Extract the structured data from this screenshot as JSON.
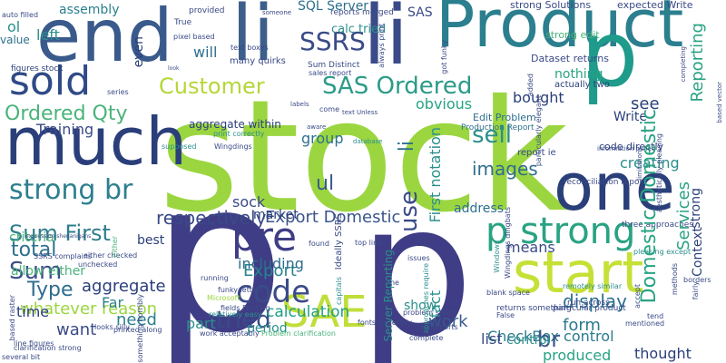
{
  "words": [
    {
      "text": "stock",
      "color": "#9bd640",
      "vertical": false
    },
    {
      "text": "p",
      "color": "#3f3d85",
      "vertical": false
    },
    {
      "text": "p",
      "color": "#3f3d85",
      "vertical": false
    },
    {
      "text": "end",
      "color": "#3a5a8c",
      "vertical": false
    },
    {
      "text": "li",
      "color": "#3d5f8b",
      "vertical": false
    },
    {
      "text": "li",
      "color": "#3a4b88",
      "vertical": false
    },
    {
      "text": "Product",
      "color": "#2b7f8e",
      "vertical": false
    },
    {
      "text": "p",
      "color": "#1e9b8a",
      "vertical": false
    },
    {
      "text": "one",
      "color": "#2a3f7a",
      "vertical": false
    },
    {
      "text": "much",
      "color": "#2a3f7a",
      "vertical": false
    },
    {
      "text": "start",
      "color": "#c6e036",
      "vertical": false
    },
    {
      "text": "sold",
      "color": "#2f4a86",
      "vertical": false
    },
    {
      "text": "pre",
      "color": "#3f3d85",
      "vertical": false
    },
    {
      "text": "p strong",
      "color": "#29a383",
      "vertical": false
    },
    {
      "text": "SAE",
      "color": "#c0de3a",
      "vertical": false
    },
    {
      "text": "code",
      "color": "#3a4b88",
      "vertical": false
    },
    {
      "text": "SSRS",
      "color": "#3a4b88",
      "vertical": false
    },
    {
      "text": "SAS Ordered",
      "color": "#2b9b88",
      "vertical": false
    },
    {
      "text": "Customer",
      "color": "#b5d738",
      "vertical": false
    },
    {
      "text": "strong br",
      "color": "#2c7f8e",
      "vertical": false
    },
    {
      "text": "Ordered Qty",
      "color": "#4ab37a",
      "vertical": false
    },
    {
      "text": "respectively",
      "color": "#3a4a87",
      "vertical": false
    },
    {
      "text": "Sum First",
      "color": "#2e7d8c",
      "vertical": false
    },
    {
      "text": "Sum",
      "color": "#3c4f88",
      "vertical": false
    },
    {
      "text": "tried",
      "color": "#3a4a87",
      "vertical": false
    },
    {
      "text": "total",
      "color": "#2d708e",
      "vertical": false
    },
    {
      "text": "Type",
      "color": "#2e6d8e",
      "vertical": false
    },
    {
      "text": "sell",
      "color": "#2b8f8c",
      "vertical": false
    },
    {
      "text": "ul",
      "color": "#37598c",
      "vertical": false
    },
    {
      "text": "images",
      "color": "#2f6e8e",
      "vertical": false
    },
    {
      "text": "Export Domestic",
      "color": "#3a548b",
      "vertical": false
    },
    {
      "text": "Export",
      "color": "#27848e",
      "vertical": false
    },
    {
      "text": "work",
      "color": "#37598c",
      "vertical": false
    },
    {
      "text": "display",
      "color": "#2d6f8e",
      "vertical": false
    },
    {
      "text": "form",
      "color": "#2b7a8e",
      "vertical": false
    },
    {
      "text": "CheckBox control",
      "color": "#2b7a8e",
      "vertical": false
    },
    {
      "text": "br",
      "color": "#3a548b",
      "vertical": false
    },
    {
      "text": "whatever reason",
      "color": "#9bd640",
      "vertical": false
    },
    {
      "text": "calculation",
      "color": "#1fa088",
      "vertical": false
    },
    {
      "text": "including",
      "color": "#2e6d8e",
      "vertical": false
    },
    {
      "text": "allow either",
      "color": "#4ab37a",
      "vertical": false
    },
    {
      "text": "criteria",
      "color": "#4ab37a",
      "vertical": false
    },
    {
      "text": "aggregate",
      "color": "#2a3f7a",
      "vertical": false
    },
    {
      "text": "Far",
      "color": "#2c7f8e",
      "vertical": false
    },
    {
      "text": "need",
      "color": "#2c7f8e",
      "vertical": false
    },
    {
      "text": "time",
      "color": "#2a3f7a",
      "vertical": false
    },
    {
      "text": "want",
      "color": "#3a4a87",
      "vertical": false
    },
    {
      "text": "part",
      "color": "#2b8f8c",
      "vertical": false
    },
    {
      "text": "period",
      "color": "#2b8f8c",
      "vertical": false
    },
    {
      "text": "list",
      "color": "#3a4a87",
      "vertical": false
    },
    {
      "text": "produced",
      "color": "#29a383",
      "vertical": false
    },
    {
      "text": "thought",
      "color": "#2a3f7a",
      "vertical": false
    },
    {
      "text": "control",
      "color": "#2b8f8c",
      "vertical": false
    },
    {
      "text": "assembly",
      "color": "#2b7f8e",
      "vertical": false
    },
    {
      "text": "ol",
      "color": "#2b8f8c",
      "vertical": false
    },
    {
      "text": "left",
      "color": "#2b8f8c",
      "vertical": false
    },
    {
      "text": "will",
      "color": "#2d6f8e",
      "vertical": false
    },
    {
      "text": "Training",
      "color": "#3a4a87",
      "vertical": false
    },
    {
      "text": "show",
      "color": "#2b8f8c",
      "vertical": false
    },
    {
      "text": "group",
      "color": "#2d708e",
      "vertical": false
    },
    {
      "text": "address",
      "color": "#2d708e",
      "vertical": false
    },
    {
      "text": "means",
      "color": "#3a4a87",
      "vertical": false
    },
    {
      "text": "see",
      "color": "#2a3f7a",
      "vertical": false
    },
    {
      "text": "Write",
      "color": "#2a3f7a",
      "vertical": false
    },
    {
      "text": "bought",
      "color": "#2a3f7a",
      "vertical": false
    },
    {
      "text": "obvious",
      "color": "#29a383",
      "vertical": false
    },
    {
      "text": "nothing",
      "color": "#29a383",
      "vertical": false
    },
    {
      "text": "creating",
      "color": "#2b8f8c",
      "vertical": false
    },
    {
      "text": "market",
      "color": "#2a3f7a",
      "vertical": false
    },
    {
      "text": "best",
      "color": "#2a3f7a",
      "vertical": false
    },
    {
      "text": "sock",
      "color": "#3a4a87",
      "vertical": false
    },
    {
      "text": "SAS",
      "color": "#3a4a87",
      "vertical": false
    },
    {
      "text": "SQL Server",
      "color": "#2d6f8e",
      "vertical": false
    },
    {
      "text": "calc tried",
      "color": "#2b8f8c",
      "vertical": false
    },
    {
      "text": "reports merged",
      "color": "#3a4a87",
      "vertical": false
    },
    {
      "text": "strong Solutions",
      "color": "#3a4a87",
      "vertical": false
    },
    {
      "text": "expected Write",
      "color": "#3a4a87",
      "vertical": false
    },
    {
      "text": "strong edit",
      "color": "#4ab37a",
      "vertical": false
    },
    {
      "text": "Dataset returns",
      "color": "#3a4a87",
      "vertical": false
    },
    {
      "text": "actually two",
      "color": "#2a3f7a",
      "vertical": false
    },
    {
      "text": "Edit Problem",
      "color": "#2d708e",
      "vertical": false
    },
    {
      "text": "Production Report",
      "color": "#2d708e",
      "vertical": false
    },
    {
      "text": "code directly",
      "color": "#2a3f7a",
      "vertical": false
    },
    {
      "text": "report ie",
      "color": "#3a4a87",
      "vertical": false
    },
    {
      "text": "reconciliation report",
      "color": "#3a4a87",
      "vertical": false
    },
    {
      "text": "three approaches",
      "color": "#3a4a87",
      "vertical": false
    },
    {
      "text": "Sum Distinct",
      "color": "#3a4a87",
      "vertical": false
    },
    {
      "text": "sales report",
      "color": "#3a4a87",
      "vertical": false
    },
    {
      "text": "figures stock",
      "color": "#2a3f7a",
      "vertical": false
    },
    {
      "text": "value",
      "color": "#2d708e",
      "vertical": false
    },
    {
      "text": "auto filled",
      "color": "#3a4a87",
      "vertical": false
    },
    {
      "text": "aggregate within",
      "color": "#2a3f7a",
      "vertical": false
    },
    {
      "text": "many quirks",
      "color": "#3a4a87",
      "vertical": false
    },
    {
      "text": "pixel based",
      "color": "#3a4a87",
      "vertical": false
    },
    {
      "text": "text boxes",
      "color": "#3a4a87",
      "vertical": false
    },
    {
      "text": "provided",
      "color": "#3a4a87",
      "vertical": false
    },
    {
      "text": "True",
      "color": "#3a4a87",
      "vertical": false
    },
    {
      "text": "someone",
      "color": "#3a4a87",
      "vertical": false
    },
    {
      "text": "expression shenanigans",
      "color": "#3a4a87",
      "vertical": false
    },
    {
      "text": "SSRS complains",
      "color": "#3a4a87",
      "vertical": false
    },
    {
      "text": "clarification strong",
      "color": "#3a4a87",
      "vertical": false
    },
    {
      "text": "line figures",
      "color": "#3a4a87",
      "vertical": false
    },
    {
      "text": "either checked",
      "color": "#3a4a87",
      "vertical": false
    },
    {
      "text": "unchecked",
      "color": "#3a4a87",
      "vertical": false
    },
    {
      "text": "Wingdings",
      "color": "#3a4a87",
      "vertical": false
    },
    {
      "text": "supposed",
      "color": "#2b8f8c",
      "vertical": false
    },
    {
      "text": "print correctly",
      "color": "#2b8f8c",
      "vertical": false
    },
    {
      "text": "text Unless",
      "color": "#3a4a87",
      "vertical": false
    },
    {
      "text": "database",
      "color": "#2b8f8c",
      "vertical": false
    },
    {
      "text": "aware",
      "color": "#3a4a87",
      "vertical": false
    },
    {
      "text": "come",
      "color": "#3a4a87",
      "vertical": false
    },
    {
      "text": "labels",
      "color": "#3a4a87",
      "vertical": false
    },
    {
      "text": "running",
      "color": "#3a4a87",
      "vertical": false
    },
    {
      "text": "found",
      "color": "#3a4a87",
      "vertical": false
    },
    {
      "text": "relatively easy",
      "color": "#2b8f8c",
      "vertical": false
    },
    {
      "text": "fields Printing",
      "color": "#3a4a87",
      "vertical": false
    },
    {
      "text": "work acceptably",
      "color": "#3a4a87",
      "vertical": false
    },
    {
      "text": "Problem clarification",
      "color": "#4ab37a",
      "vertical": false
    },
    {
      "text": "fonts generally",
      "color": "#3a4a87",
      "vertical": false
    },
    {
      "text": "two reports",
      "color": "#3a4a87",
      "vertical": false
    },
    {
      "text": "complete",
      "color": "#3a4a87",
      "vertical": false
    },
    {
      "text": "issues",
      "color": "#3a4a87",
      "vertical": false
    },
    {
      "text": "problem stems",
      "color": "#3a4a87",
      "vertical": false
    },
    {
      "text": "top line",
      "color": "#3a4a87",
      "vertical": false
    },
    {
      "text": "blank space",
      "color": "#3a4a87",
      "vertical": false
    },
    {
      "text": "particular product",
      "color": "#3a4a87",
      "vertical": false
    },
    {
      "text": "run across",
      "color": "#3a4a87",
      "vertical": false
    },
    {
      "text": "remotely similar",
      "color": "#2b8f8c",
      "vertical": false
    },
    {
      "text": "returns something",
      "color": "#3a4a87",
      "vertical": false
    },
    {
      "text": "False",
      "color": "#3a4a87",
      "vertical": false
    },
    {
      "text": "mentioned",
      "color": "#3a4a87",
      "vertical": false
    },
    {
      "text": "none",
      "color": "#3a4a87",
      "vertical": false
    },
    {
      "text": "funky letters",
      "color": "#3a4a87",
      "vertical": false
    },
    {
      "text": "Microsoft",
      "color": "#9bd640",
      "vertical": false
    },
    {
      "text": "looks silly",
      "color": "#3a4a87",
      "vertical": false
    },
    {
      "text": "printed along",
      "color": "#3a4a87",
      "vertical": false
    },
    {
      "text": "several bit",
      "color": "#3a4a87",
      "vertical": false
    },
    {
      "text": "look",
      "color": "#3a4a87",
      "vertical": false
    },
    {
      "text": "series",
      "color": "#3a4a87",
      "vertical": false
    },
    {
      "text": "pleasing except",
      "color": "#2b8f8c",
      "vertical": false
    },
    {
      "text": "information pulled",
      "color": "#3a4a87",
      "vertical": false
    },
    {
      "text": "borders",
      "color": "#3a4a87",
      "vertical": false
    },
    {
      "text": "tend",
      "color": "#3a4a87",
      "vertical": false
    },
    {
      "text": "Services",
      "color": "#29a383",
      "vertical": true
    },
    {
      "text": "Reporting",
      "color": "#29a383",
      "vertical": true
    },
    {
      "text": "Domestic Domestic",
      "color": "#29a383",
      "vertical": true
    },
    {
      "text": "Context",
      "color": "#2a3f7a",
      "vertical": true
    },
    {
      "text": "strong",
      "color": "#2a3f7a",
      "vertical": true
    },
    {
      "text": "li",
      "color": "#2d6f8e",
      "vertical": true
    },
    {
      "text": "use",
      "color": "#3a4a87",
      "vertical": true
    },
    {
      "text": "fact",
      "color": "#2b8f8c",
      "vertical": true
    },
    {
      "text": "First notation",
      "color": "#2b8f8c",
      "vertical": true
    },
    {
      "text": "even",
      "color": "#2a3f7a",
      "vertical": true
    },
    {
      "text": "Server Reporting",
      "color": "#2b8f8c",
      "vertical": true
    },
    {
      "text": "Ideally SSRS",
      "color": "#3a4a87",
      "vertical": true
    },
    {
      "text": "either",
      "color": "#4ab37a",
      "vertical": true
    },
    {
      "text": "always print",
      "color": "#3a4a87",
      "vertical": true
    },
    {
      "text": "got funky",
      "color": "#3a4a87",
      "vertical": true
    },
    {
      "text": "approaches require",
      "color": "#2b8f8c",
      "vertical": true
    },
    {
      "text": "Wingdings dingbats",
      "color": "#3a4a87",
      "vertical": true
    },
    {
      "text": "capitals",
      "color": "#2b8f8c",
      "vertical": true
    },
    {
      "text": "added",
      "color": "#3a4a87",
      "vertical": true
    },
    {
      "text": "Windows",
      "color": "#2b8f8c",
      "vertical": true
    },
    {
      "text": "something horribly",
      "color": "#3a4a87",
      "vertical": true
    },
    {
      "text": "fairly",
      "color": "#3a4a87",
      "vertical": true
    },
    {
      "text": "based raster",
      "color": "#3a4a87",
      "vertical": true
    },
    {
      "text": "based vector",
      "color": "#3a4a87",
      "vertical": true
    },
    {
      "text": "accept",
      "color": "#3a4a87",
      "vertical": true
    },
    {
      "text": "particularly elegant",
      "color": "#3a4a87",
      "vertical": true
    },
    {
      "text": "completing",
      "color": "#3a4a87",
      "vertical": true
    },
    {
      "text": "methods",
      "color": "#3a4a87",
      "vertical": true
    },
    {
      "text": "limitations",
      "color": "#3a4a87",
      "vertical": true
    },
    {
      "text": "aesthetically pleasing",
      "color": "#3a4a87",
      "vertical": true
    }
  ]
}
